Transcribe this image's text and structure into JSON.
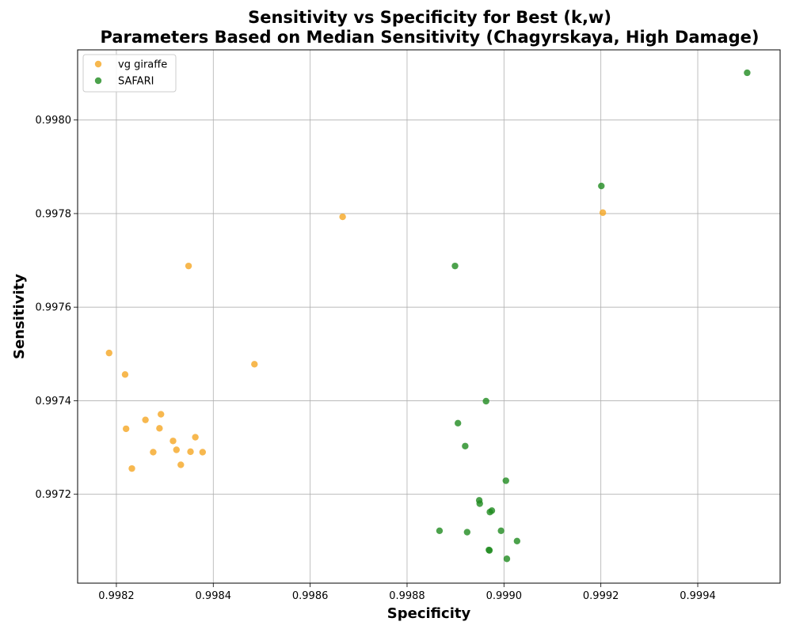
{
  "chart_data": {
    "type": "scatter",
    "title_line1": "Sensitivity vs Specificity for Best (k,w)",
    "title_line2": "Parameters Based on Median Sensitivity (Chagyrskaya, High Damage)",
    "xlabel": "Specificity",
    "ylabel": "Sensitivity",
    "xlim": [
      0.99812,
      0.99957
    ],
    "ylim": [
      0.99701,
      0.99815
    ],
    "xticks": [
      "0.9982",
      "0.9984",
      "0.9986",
      "0.9988",
      "0.9990",
      "0.9992",
      "0.9994"
    ],
    "yticks": [
      "0.9972",
      "0.9974",
      "0.9976",
      "0.9978",
      "0.9980"
    ],
    "grid": true,
    "legend_position": "top-left",
    "series": [
      {
        "name": "vg giraffe",
        "color": "#f5a623",
        "x": [
          0.998185,
          0.998218,
          0.99822,
          0.998232,
          0.99826,
          0.998276,
          0.998289,
          0.998292,
          0.998317,
          0.998324,
          0.998333,
          0.998349,
          0.998353,
          0.998363,
          0.998378,
          0.998485,
          0.998667,
          0.999204
        ],
        "y": [
          0.997502,
          0.997456,
          0.99734,
          0.997255,
          0.997359,
          0.99729,
          0.997341,
          0.997371,
          0.997314,
          0.997295,
          0.997263,
          0.997688,
          0.997291,
          0.997322,
          0.99729,
          0.997478,
          0.997793,
          0.997802
        ]
      },
      {
        "name": "SAFARI",
        "color": "#1f8b1f",
        "x": [
          0.998867,
          0.998899,
          0.998905,
          0.99892,
          0.998924,
          0.998949,
          0.99895,
          0.998963,
          0.998969,
          0.99897,
          0.998971,
          0.998975,
          0.998994,
          0.999004,
          0.999006,
          0.999027,
          0.999201,
          0.999502
        ],
        "y": [
          0.997122,
          0.997688,
          0.997352,
          0.997303,
          0.997119,
          0.997187,
          0.99718,
          0.997399,
          0.997081,
          0.99708,
          0.997162,
          0.997165,
          0.997122,
          0.997229,
          0.997062,
          0.9971,
          0.997859,
          0.998101
        ]
      }
    ]
  }
}
